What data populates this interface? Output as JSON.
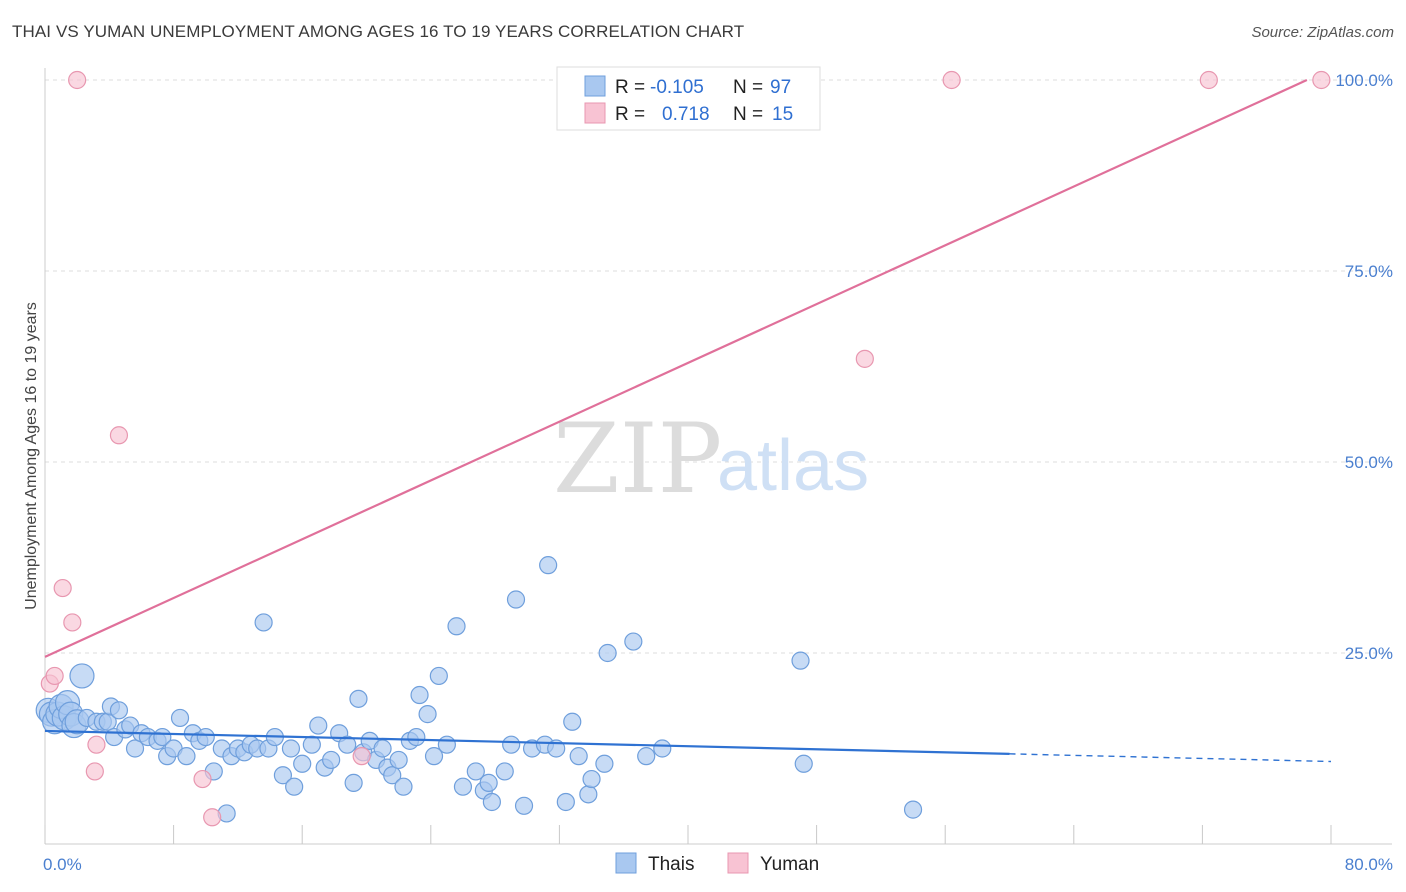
{
  "header": {
    "title": "THAI VS YUMAN UNEMPLOYMENT AMONG AGES 16 TO 19 YEARS CORRELATION CHART",
    "source": "Source: ZipAtlas.com"
  },
  "legend_top": [
    {
      "r_label": "R =",
      "r_value": "-0.105",
      "n_label": "N =",
      "n_value": "97",
      "color": "#a9c8f0",
      "border": "#6f9fdc"
    },
    {
      "r_label": "R =",
      "r_value": "0.718",
      "n_label": "N =",
      "n_value": "15",
      "color": "#f8c3d3",
      "border": "#e897b0"
    }
  ],
  "legend_bottom": [
    {
      "label": "Thais",
      "color": "#a9c8f0",
      "border": "#6f9fdc"
    },
    {
      "label": "Yuman",
      "color": "#f8c3d3",
      "border": "#e897b0"
    }
  ],
  "watermark": {
    "zip": "ZIP",
    "atlas": "atlas"
  },
  "chart_data": {
    "type": "scatter",
    "title": "THAI VS YUMAN UNEMPLOYMENT AMONG AGES 16 TO 19 YEARS CORRELATION CHART",
    "xlabel": "",
    "ylabel": "Unemployment Among Ages 16 to 19 years",
    "xlim": [
      0,
      80
    ],
    "ylim": [
      0,
      100
    ],
    "x_tick_labels": [
      {
        "value": 0,
        "label": "0.0%"
      },
      {
        "value": 80,
        "label": "80.0%"
      }
    ],
    "y_tick_labels": [
      {
        "value": 25,
        "label": "25.0%"
      },
      {
        "value": 50,
        "label": "50.0%"
      },
      {
        "value": 75,
        "label": "75.0%"
      },
      {
        "value": 100,
        "label": "100.0%"
      }
    ],
    "grid": true,
    "legend_placement": "top-center",
    "series": [
      {
        "name": "Thais",
        "color": "#6f9fdc",
        "fill": "#a9c8f0",
        "trend": {
          "x_solid": [
            0,
            60
          ],
          "y_solid": [
            14.8,
            11.8
          ],
          "x_dashed": [
            60,
            80
          ],
          "y_dashed": [
            11.8,
            10.8
          ]
        },
        "points": [
          [
            0.2,
            17.5
          ],
          [
            0.4,
            17.0
          ],
          [
            0.6,
            16.0
          ],
          [
            0.8,
            17.0
          ],
          [
            1.0,
            18.0
          ],
          [
            1.2,
            16.5
          ],
          [
            1.4,
            18.5
          ],
          [
            1.6,
            17.0
          ],
          [
            1.8,
            15.5
          ],
          [
            2.0,
            16.0
          ],
          [
            2.3,
            22.0
          ],
          [
            2.6,
            16.5
          ],
          [
            3.2,
            16.0
          ],
          [
            3.6,
            16.0
          ],
          [
            3.9,
            16.0
          ],
          [
            4.1,
            18.0
          ],
          [
            4.3,
            14.0
          ],
          [
            4.6,
            17.5
          ],
          [
            5.0,
            15.0
          ],
          [
            5.3,
            15.5
          ],
          [
            5.6,
            12.5
          ],
          [
            6.0,
            14.5
          ],
          [
            6.4,
            14.0
          ],
          [
            7.0,
            13.5
          ],
          [
            7.3,
            14.0
          ],
          [
            7.6,
            11.5
          ],
          [
            8.0,
            12.5
          ],
          [
            8.4,
            16.5
          ],
          [
            8.8,
            11.5
          ],
          [
            9.2,
            14.5
          ],
          [
            9.6,
            13.5
          ],
          [
            10.0,
            14.0
          ],
          [
            10.5,
            9.5
          ],
          [
            11.0,
            12.5
          ],
          [
            11.3,
            4.0
          ],
          [
            11.6,
            11.5
          ],
          [
            12.0,
            12.5
          ],
          [
            12.4,
            12.0
          ],
          [
            12.8,
            13.0
          ],
          [
            13.2,
            12.5
          ],
          [
            13.6,
            29.0
          ],
          [
            13.9,
            12.5
          ],
          [
            14.3,
            14.0
          ],
          [
            14.8,
            9.0
          ],
          [
            15.3,
            12.5
          ],
          [
            15.5,
            7.5
          ],
          [
            16.0,
            10.5
          ],
          [
            16.6,
            13.0
          ],
          [
            17.0,
            15.5
          ],
          [
            17.4,
            10.0
          ],
          [
            17.8,
            11.0
          ],
          [
            18.3,
            14.5
          ],
          [
            18.8,
            13.0
          ],
          [
            19.2,
            8.0
          ],
          [
            19.5,
            19.0
          ],
          [
            19.8,
            12.0
          ],
          [
            20.2,
            13.5
          ],
          [
            20.6,
            11.0
          ],
          [
            21.0,
            12.5
          ],
          [
            21.3,
            10.0
          ],
          [
            21.6,
            9.0
          ],
          [
            22.0,
            11.0
          ],
          [
            22.3,
            7.5
          ],
          [
            22.7,
            13.5
          ],
          [
            23.1,
            14.0
          ],
          [
            23.3,
            19.5
          ],
          [
            23.8,
            17.0
          ],
          [
            24.2,
            11.5
          ],
          [
            24.5,
            22.0
          ],
          [
            25.0,
            13.0
          ],
          [
            25.6,
            28.5
          ],
          [
            26.0,
            7.5
          ],
          [
            26.8,
            9.5
          ],
          [
            27.3,
            7.0
          ],
          [
            27.6,
            8.0
          ],
          [
            27.8,
            5.5
          ],
          [
            28.6,
            9.5
          ],
          [
            29.0,
            13.0
          ],
          [
            29.3,
            32.0
          ],
          [
            29.8,
            5.0
          ],
          [
            30.3,
            12.5
          ],
          [
            31.1,
            13.0
          ],
          [
            31.3,
            36.5
          ],
          [
            31.8,
            12.5
          ],
          [
            32.4,
            5.5
          ],
          [
            32.8,
            16.0
          ],
          [
            33.2,
            11.5
          ],
          [
            33.8,
            6.5
          ],
          [
            34.0,
            8.5
          ],
          [
            34.8,
            10.5
          ],
          [
            35.0,
            25.0
          ],
          [
            36.6,
            26.5
          ],
          [
            37.4,
            11.5
          ],
          [
            38.4,
            12.5
          ],
          [
            47.0,
            24.0
          ],
          [
            47.2,
            10.5
          ],
          [
            54.0,
            4.5
          ]
        ]
      },
      {
        "name": "Yuman",
        "color": "#e897b0",
        "fill": "#f8c3d3",
        "trend": {
          "x_solid": [
            0,
            78.5
          ],
          "y_solid": [
            24.5,
            100.0
          ]
        },
        "points": [
          [
            0.3,
            21.0
          ],
          [
            0.6,
            22.0
          ],
          [
            1.1,
            33.5
          ],
          [
            1.7,
            29.0
          ],
          [
            2.0,
            100.0
          ],
          [
            3.1,
            9.5
          ],
          [
            3.2,
            13.0
          ],
          [
            4.6,
            53.5
          ],
          [
            9.8,
            8.5
          ],
          [
            10.4,
            3.5
          ],
          [
            19.7,
            11.5
          ],
          [
            51.0,
            63.5
          ],
          [
            56.4,
            100.0
          ],
          [
            72.4,
            100.0
          ],
          [
            79.4,
            100.0
          ]
        ]
      }
    ]
  }
}
